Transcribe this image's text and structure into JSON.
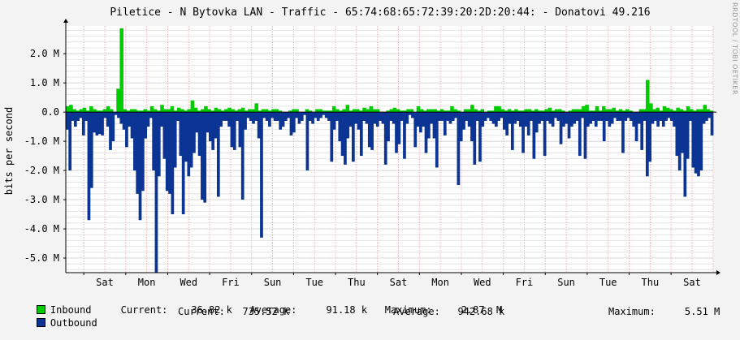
{
  "chart_data": {
    "type": "area",
    "title": "Piletice - N Bytovka LAN - Traffic - 65:74:68:65:72:39:20:2D:20:44: - Donatovi 49.216",
    "ylabel": "bits per second",
    "watermark": "RRDTOOL / TOBI OETIKER",
    "ylim": [
      -5.5,
      2.95
    ],
    "yticks": [
      {
        "v": 2.0,
        "label": "2.0 M"
      },
      {
        "v": 1.0,
        "label": "1.0 M"
      },
      {
        "v": 0.0,
        "label": "0.0"
      },
      {
        "v": -1.0,
        "label": "-1.0 M"
      },
      {
        "v": -2.0,
        "label": "-2.0 M"
      },
      {
        "v": -3.0,
        "label": "-3.0 M"
      },
      {
        "v": -4.0,
        "label": "-4.0 M"
      },
      {
        "v": -5.0,
        "label": "-5.0 M"
      }
    ],
    "xticks": [
      "Sat",
      "Mon",
      "Wed",
      "Fri",
      "Sun",
      "Tue",
      "Thu",
      "Sat",
      "Mon",
      "Wed",
      "Fri",
      "Sun",
      "Tue",
      "Thu",
      "Sat"
    ],
    "series": [
      {
        "name": "Inbound",
        "color": "#00cc00",
        "values": [
          0.2,
          0.25,
          0.1,
          0.05,
          0.1,
          0.15,
          0.05,
          0.2,
          0.1,
          0.05,
          0.05,
          0.1,
          0.2,
          0.1,
          0.0,
          0.8,
          2.87,
          0.1,
          0.05,
          0.1,
          0.1,
          0.05,
          0.05,
          0.1,
          0.05,
          0.2,
          0.1,
          0.05,
          0.25,
          0.1,
          0.1,
          0.2,
          0.05,
          0.15,
          0.1,
          0.05,
          0.1,
          0.4,
          0.15,
          0.05,
          0.1,
          0.2,
          0.1,
          0.05,
          0.15,
          0.1,
          0.05,
          0.1,
          0.15,
          0.1,
          0.05,
          0.1,
          0.15,
          0.05,
          0.1,
          0.1,
          0.3,
          0.05,
          0.1,
          0.1,
          0.05,
          0.1,
          0.1,
          0.05,
          0.0,
          0.0,
          0.05,
          0.1,
          0.1,
          0.0,
          0.0,
          0.1,
          0.05,
          0.0,
          0.1,
          0.1,
          0.05,
          0.05,
          0.05,
          0.2,
          0.1,
          0.05,
          0.1,
          0.25,
          0.05,
          0.1,
          0.1,
          0.05,
          0.15,
          0.1,
          0.2,
          0.1,
          0.1,
          0.0,
          0.0,
          0.05,
          0.1,
          0.15,
          0.1,
          0.05,
          0.05,
          0.1,
          0.1,
          0.0,
          0.2,
          0.1,
          0.05,
          0.1,
          0.1,
          0.1,
          0.05,
          0.1,
          0.05,
          0.05,
          0.2,
          0.1,
          0.05,
          0.0,
          0.1,
          0.1,
          0.25,
          0.1,
          0.05,
          0.1,
          0.0,
          0.05,
          0.05,
          0.2,
          0.2,
          0.1,
          0.05,
          0.1,
          0.05,
          0.1,
          0.05,
          0.05,
          0.1,
          0.1,
          0.05,
          0.1,
          0.05,
          0.05,
          0.1,
          0.15,
          0.05,
          0.1,
          0.1,
          0.05,
          0.0,
          0.05,
          0.1,
          0.1,
          0.1,
          0.2,
          0.25,
          0.05,
          0.05,
          0.2,
          0.05,
          0.2,
          0.1,
          0.1,
          0.15,
          0.05,
          0.1,
          0.05,
          0.1,
          0.05,
          0.0,
          0.0,
          0.1,
          0.1,
          1.1,
          0.3,
          0.1,
          0.15,
          0.05,
          0.2,
          0.15,
          0.1,
          0.05,
          0.15,
          0.1,
          0.05,
          0.2,
          0.1,
          0.05,
          0.1,
          0.1,
          0.25,
          0.1,
          0.05
        ],
        "max": 2.87
      },
      {
        "name": "Outbound",
        "color": "#0b3494",
        "values": [
          -0.6,
          -2.0,
          -0.3,
          -0.5,
          -0.3,
          -0.2,
          -0.8,
          -0.3,
          -3.7,
          -2.6,
          -0.7,
          -0.8,
          -0.75,
          -0.8,
          -0.2,
          -0.5,
          -1.3,
          -1.0,
          -0.1,
          -0.2,
          -0.4,
          -0.6,
          -1.2,
          -0.5,
          -0.9,
          -2.0,
          -2.8,
          -3.7,
          -2.7,
          -0.9,
          -0.5,
          -0.2,
          -2.0,
          -5.5,
          -2.2,
          -0.5,
          -1.6,
          -2.7,
          -2.8,
          -3.5,
          -1.9,
          -0.3,
          -1.5,
          -3.5,
          -1.7,
          -2.2,
          -1.9,
          -1.4,
          -0.7,
          -1.5,
          -3.0,
          -3.1,
          -0.7,
          -1.0,
          -1.3,
          -0.9,
          -2.9,
          -0.5,
          -0.3,
          -0.3,
          -0.5,
          -1.2,
          -1.3,
          -0.3,
          -1.2,
          -3.0,
          -0.6,
          -0.2,
          -0.3,
          -0.4,
          -0.3,
          -0.9,
          -4.3,
          -0.2,
          -0.3,
          -0.5,
          -0.2,
          -0.3,
          -0.3,
          -0.6,
          -0.5,
          -0.3,
          -0.2,
          -0.8,
          -0.7,
          -0.2,
          -0.4,
          -0.3,
          -0.1,
          -2.0,
          -0.3,
          -0.4,
          -0.2,
          -0.3,
          -0.2,
          -0.1,
          -0.2,
          -0.3,
          -1.7,
          -0.6,
          -0.3,
          -1.0,
          -1.5,
          -1.8,
          -0.9,
          -0.5,
          -1.7,
          -0.4,
          -0.6,
          -1.5,
          -0.3,
          -0.4,
          -1.2,
          -1.3,
          -0.4,
          -0.5,
          -0.3,
          -0.4,
          -1.8,
          -1.0,
          -0.3,
          -0.4,
          -1.4,
          -1.1,
          -0.3,
          -1.6,
          -0.4,
          -0.1,
          -0.2,
          -1.2,
          -0.5,
          -0.7,
          -0.5,
          -1.4,
          -0.9,
          -0.4,
          -0.9,
          -1.9,
          -0.3,
          -0.3,
          -0.8,
          -0.3,
          -0.4,
          -0.3,
          -0.2,
          -2.5,
          -1.0,
          -0.6,
          -0.3,
          -0.5,
          -1.0,
          -1.8,
          -0.3,
          -1.7,
          -0.5,
          -0.3,
          -0.2,
          -0.3,
          -0.4,
          -0.5,
          -0.3,
          -0.2,
          -0.6,
          -0.8,
          -0.4,
          -1.3,
          -0.4,
          -0.3,
          -0.5,
          -1.4,
          -0.5,
          -0.8,
          -0.3,
          -1.6,
          -0.7,
          -0.4,
          -0.3,
          -1.5,
          -0.3,
          -0.4,
          -0.5,
          -0.2,
          -0.3,
          -1.1,
          -0.5,
          -0.4,
          -0.9,
          -0.5,
          -0.4,
          -0.3,
          -1.5,
          -0.2,
          -1.6,
          -0.5,
          -0.4,
          -0.3,
          -0.5,
          -0.3,
          -0.3,
          -1.0,
          -0.3,
          -0.5,
          -0.4,
          -0.2,
          -0.3,
          -0.3,
          -1.4,
          -0.3,
          -0.2,
          -0.3,
          -0.5,
          -1.0,
          -0.4,
          -1.3,
          -0.3,
          -2.2,
          -1.7,
          -0.4,
          -0.3,
          -0.5,
          -0.3,
          -0.5,
          -0.3,
          -0.2,
          -0.3,
          -0.5,
          -1.5,
          -2.0,
          -1.4,
          -2.9,
          -1.6,
          -0.3,
          -1.9,
          -2.1,
          -2.2,
          -2.0,
          -0.4,
          -0.3,
          -0.2,
          -0.8
        ],
        "max": 5.51
      }
    ]
  },
  "legend": {
    "inbound": {
      "name": "Inbound",
      "current_label": "Current:",
      "current": "36.82 k",
      "average_label": "Average:",
      "average": "91.18 k",
      "maximum_label": "Maximum:",
      "maximum": "2.87  M"
    },
    "outbound": {
      "name": "Outbound",
      "current_label": "Current:",
      "current": "735.52 k",
      "average_label": "Average:",
      "average": "942.68 k",
      "maximum_label": "Maximum:",
      "maximum": "5.51 M"
    }
  }
}
